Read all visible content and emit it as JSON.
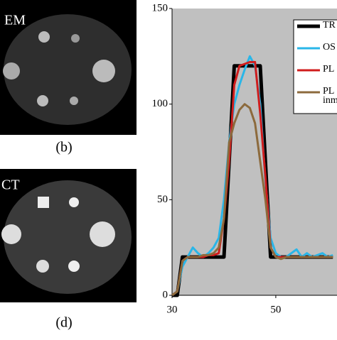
{
  "images": [
    {
      "label": "EM",
      "caption": "(b)"
    },
    {
      "label": "CT",
      "caption": "(d)"
    }
  ],
  "chart_data": {
    "type": "line",
    "x": [
      30,
      31,
      32,
      33,
      34,
      35,
      36,
      37,
      38,
      39,
      40,
      41,
      42,
      43,
      44,
      45,
      46,
      47,
      48,
      49,
      50,
      51,
      52,
      53,
      54,
      55,
      56,
      57,
      58,
      59,
      60,
      61
    ],
    "series": [
      {
        "name": "TR",
        "color": "#000000",
        "values": [
          0,
          0,
          20,
          20,
          20,
          20,
          20,
          20,
          20,
          20,
          20,
          70,
          120,
          120,
          120,
          120,
          120,
          120,
          70,
          20,
          20,
          20,
          20,
          20,
          20,
          20,
          20,
          20,
          20,
          20,
          20,
          20
        ]
      },
      {
        "name": "OS",
        "color": "#29b6e8",
        "values": [
          0,
          2,
          15,
          20,
          25,
          22,
          20,
          22,
          25,
          30,
          50,
          80,
          100,
          110,
          118,
          125,
          120,
          100,
          60,
          30,
          22,
          20,
          20,
          22,
          24,
          20,
          22,
          20,
          21,
          22,
          20,
          21
        ]
      },
      {
        "name": "PL",
        "color": "#d01c1c",
        "values": [
          0,
          2,
          18,
          20,
          20,
          20,
          20,
          21,
          21,
          22,
          40,
          70,
          110,
          120,
          121,
          122,
          122,
          95,
          62,
          25,
          20,
          20,
          20,
          20,
          20,
          20,
          20,
          20,
          20,
          20,
          20,
          20
        ]
      },
      {
        "name": "PL inm",
        "color": "#8c6a3c",
        "values": [
          0,
          2,
          18,
          20,
          20,
          20,
          21,
          21,
          22,
          25,
          40,
          80,
          90,
          97,
          100,
          98,
          90,
          70,
          50,
          25,
          20,
          19,
          20,
          20,
          20,
          20,
          20,
          20,
          20,
          20,
          20,
          20
        ]
      }
    ],
    "xlim": [
      30,
      61.8
    ],
    "ylim": [
      0,
      150
    ],
    "xticks": [
      30,
      50
    ],
    "yticks": [
      0,
      50,
      100,
      150
    ]
  }
}
